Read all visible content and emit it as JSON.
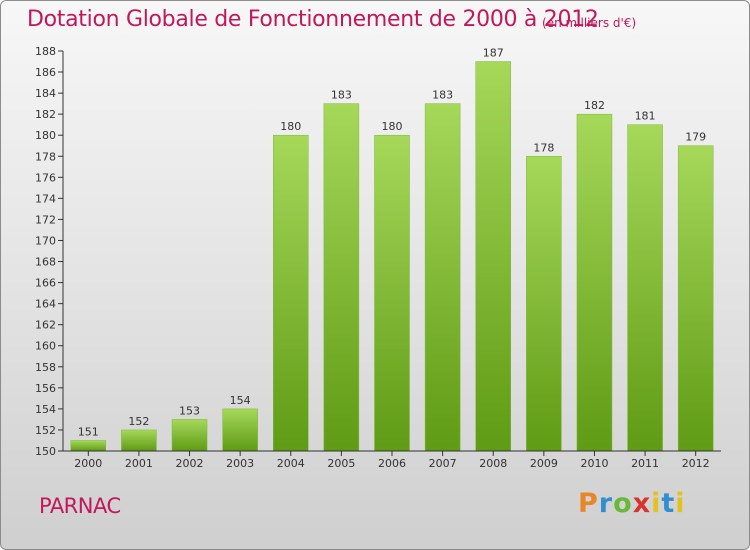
{
  "title": "Dotation Globale de Fonctionnement de 2000 à 2012",
  "unit_note": "(en milliers d'€)",
  "commune": "PARNAC",
  "logo_text": "Proxiti",
  "colors": {
    "title": "#c2185b",
    "bar_light": "#a6d85a",
    "bar_dark": "#5f9b14",
    "axis": "#333333",
    "grid_tick": "#333333"
  },
  "chart_data": {
    "type": "bar",
    "categories": [
      "2000",
      "2001",
      "2002",
      "2003",
      "2004",
      "2005",
      "2006",
      "2007",
      "2008",
      "2009",
      "2010",
      "2011",
      "2012"
    ],
    "values": [
      151,
      152,
      153,
      154,
      180,
      183,
      180,
      183,
      187,
      178,
      182,
      181,
      179
    ],
    "title": "Dotation Globale de Fonctionnement de 2000 à 2012",
    "ylim": [
      150,
      188
    ],
    "yticks": [
      150,
      152,
      154,
      156,
      158,
      160,
      162,
      164,
      166,
      168,
      170,
      172,
      174,
      176,
      178,
      180,
      182,
      184,
      186,
      188
    ],
    "grid": false,
    "legend": "none"
  }
}
